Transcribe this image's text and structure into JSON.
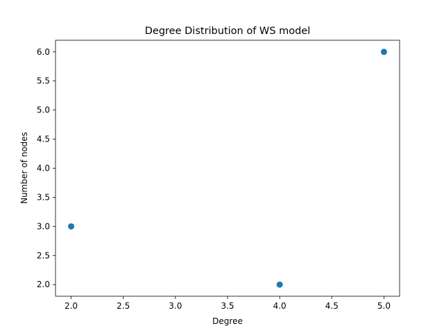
{
  "chart_data": {
    "type": "scatter",
    "title": "Degree Distribution of WS model",
    "xlabel": "Degree",
    "ylabel": "Number of nodes",
    "xlim": [
      1.85,
      5.15
    ],
    "ylim": [
      1.8,
      6.2
    ],
    "xticks": [
      2.0,
      2.5,
      3.0,
      3.5,
      4.0,
      4.5,
      5.0
    ],
    "xtick_labels": [
      "2.0",
      "2.5",
      "3.0",
      "3.5",
      "4.0",
      "4.5",
      "5.0"
    ],
    "yticks": [
      2.0,
      2.5,
      3.0,
      3.5,
      4.0,
      4.5,
      5.0,
      5.5,
      6.0
    ],
    "ytick_labels": [
      "2.0",
      "2.5",
      "3.0",
      "3.5",
      "4.0",
      "4.5",
      "5.0",
      "5.5",
      "6.0"
    ],
    "grid": false,
    "series": [
      {
        "color": "#1f77b4",
        "points": [
          {
            "x": 2,
            "y": 3
          },
          {
            "x": 4,
            "y": 2
          },
          {
            "x": 5,
            "y": 6
          }
        ]
      }
    ]
  }
}
